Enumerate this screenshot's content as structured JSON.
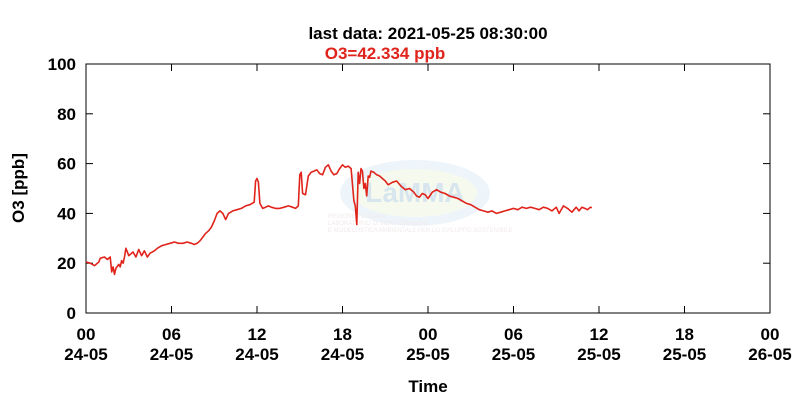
{
  "header": {
    "title": "last data: 2021-05-25 08:30:00",
    "value_readout": "O3=42.334 ppb"
  },
  "colors": {
    "series": "#e0241b",
    "readout": "#e0241b",
    "axes": "#000000",
    "background": "#ffffff"
  },
  "chart_data": {
    "type": "line",
    "title": "last data: 2021-05-25 08:30:00",
    "subtitle": "O3=42.334 ppb",
    "xlabel": "Time",
    "ylabel": "O3 [ppb]",
    "ylim": [
      0,
      100
    ],
    "xlim_hours": [
      0,
      48
    ],
    "grid": false,
    "legend": "none",
    "yticks": [
      0,
      20,
      40,
      60,
      80,
      100
    ],
    "xticks": [
      {
        "hour": 0,
        "time": "00",
        "date": "24-05"
      },
      {
        "hour": 6,
        "time": "06",
        "date": "24-05"
      },
      {
        "hour": 12,
        "time": "12",
        "date": "24-05"
      },
      {
        "hour": 18,
        "time": "18",
        "date": "24-05"
      },
      {
        "hour": 24,
        "time": "00",
        "date": "25-05"
      },
      {
        "hour": 30,
        "time": "06",
        "date": "25-05"
      },
      {
        "hour": 36,
        "time": "12",
        "date": "25-05"
      },
      {
        "hour": 42,
        "time": "18",
        "date": "25-05"
      },
      {
        "hour": 48,
        "time": "00",
        "date": "26-05"
      }
    ],
    "series": [
      {
        "x_hours": [
          0.0,
          0.3,
          0.6,
          0.9,
          1.0,
          1.3,
          1.5,
          1.7,
          1.8,
          1.9,
          2.0,
          2.1,
          2.3,
          2.4,
          2.5,
          2.6,
          2.7,
          2.8,
          3.0,
          3.3,
          3.5,
          3.7,
          3.9,
          4.1,
          4.3,
          4.5,
          4.8,
          5.0,
          5.3,
          5.6,
          5.9,
          6.2,
          6.5,
          6.8,
          7.1,
          7.4,
          7.6,
          7.8,
          8.0,
          8.2,
          8.4,
          8.6,
          8.8,
          9.0,
          9.2,
          9.4,
          9.6,
          9.8,
          10.0,
          10.3,
          10.6,
          10.9,
          11.2,
          11.5,
          11.8,
          11.9,
          12.0,
          12.1,
          12.2,
          12.4,
          12.6,
          12.8,
          13.0,
          13.3,
          13.6,
          13.9,
          14.2,
          14.5,
          14.7,
          14.9,
          15.0,
          15.1,
          15.2,
          15.4,
          15.6,
          15.8,
          16.0,
          16.2,
          16.4,
          16.6,
          16.8,
          17.0,
          17.2,
          17.4,
          17.6,
          17.8,
          18.0,
          18.2,
          18.4,
          18.6,
          18.8,
          18.9,
          19.0,
          19.1,
          19.2,
          19.3,
          19.4,
          19.5,
          19.6,
          19.7,
          19.8,
          19.9,
          20.0,
          20.2,
          20.4,
          20.6,
          20.8,
          21.0,
          21.2,
          21.5,
          21.8,
          22.1,
          22.4,
          22.7,
          23.0,
          23.2,
          23.4,
          23.6,
          23.8,
          24.0,
          24.3,
          24.6,
          24.9,
          25.2,
          25.5,
          25.8,
          26.1,
          26.4,
          26.7,
          27.0,
          27.3,
          27.6,
          27.9,
          28.2,
          28.5,
          28.8,
          29.1,
          29.4,
          29.7,
          30.0,
          30.3,
          30.6,
          30.9,
          31.2,
          31.5,
          31.8,
          32.1,
          32.4,
          32.7,
          33.0,
          33.2,
          33.5,
          33.8,
          34.1,
          34.4,
          34.6,
          34.8,
          35.0,
          35.2,
          35.4,
          35.5
        ],
        "values": [
          20.5,
          20.0,
          19.0,
          20.5,
          22.0,
          22.5,
          21.5,
          22.5,
          16.5,
          18.5,
          15.5,
          18.0,
          19.5,
          18.5,
          21.0,
          20.0,
          22.5,
          26.0,
          23.0,
          24.5,
          22.5,
          25.5,
          23.0,
          25.0,
          22.5,
          24.0,
          25.0,
          26.0,
          27.0,
          27.5,
          28.0,
          28.5,
          28.0,
          28.0,
          28.5,
          28.0,
          27.5,
          28.0,
          29.0,
          30.5,
          32.0,
          33.0,
          34.5,
          37.0,
          40.0,
          41.0,
          40.0,
          37.5,
          40.0,
          41.0,
          41.5,
          42.0,
          43.0,
          43.5,
          44.5,
          53.0,
          54.0,
          52.5,
          44.0,
          42.0,
          42.5,
          43.0,
          42.5,
          42.0,
          42.0,
          42.5,
          43.0,
          42.5,
          42.0,
          43.0,
          55.5,
          56.5,
          48.0,
          47.5,
          55.0,
          56.5,
          57.0,
          57.5,
          56.0,
          55.5,
          58.5,
          59.5,
          57.0,
          55.5,
          56.0,
          58.0,
          59.5,
          58.5,
          59.0,
          58.0,
          45.0,
          43.0,
          35.5,
          56.5,
          52.0,
          58.0,
          57.0,
          50.0,
          52.0,
          47.0,
          55.0,
          54.5,
          57.0,
          56.5,
          55.5,
          55.0,
          54.0,
          53.0,
          51.5,
          52.5,
          53.0,
          51.0,
          49.5,
          50.0,
          48.5,
          47.0,
          46.5,
          48.0,
          47.5,
          46.0,
          48.5,
          49.5,
          48.5,
          48.0,
          47.0,
          46.5,
          46.0,
          45.0,
          44.0,
          43.5,
          42.5,
          41.5,
          41.0,
          40.5,
          41.0,
          40.0,
          40.5,
          41.0,
          41.5,
          42.0,
          41.5,
          42.5,
          42.0,
          42.5,
          42.0,
          41.5,
          42.5,
          42.0,
          41.0,
          42.5,
          40.0,
          43.0,
          42.0,
          40.5,
          42.5,
          41.0,
          42.5,
          42.0,
          41.5,
          42.5,
          42.3
        ]
      }
    ],
    "watermark": {
      "logo_letters": "LaMMA",
      "lines": [
        "REGIONE TOSCANA",
        "LABORATORIO DI MONITORAGGIO",
        "E MODELLISTICA AMBIENTALE PER LO SVILUPPO SOSTENIBILE"
      ]
    }
  }
}
